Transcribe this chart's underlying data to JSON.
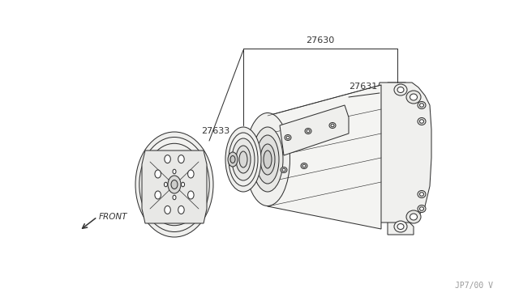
{
  "bg_color": "#ffffff",
  "line_color": "#333333",
  "text_color": "#333333",
  "label_27630": "27630",
  "label_27631": "27631",
  "label_27633": "27633",
  "label_front": "FRONT",
  "watermark": "JP7/00 V",
  "figsize": [
    6.4,
    3.72
  ],
  "dpi": 100,
  "lw": 0.75
}
